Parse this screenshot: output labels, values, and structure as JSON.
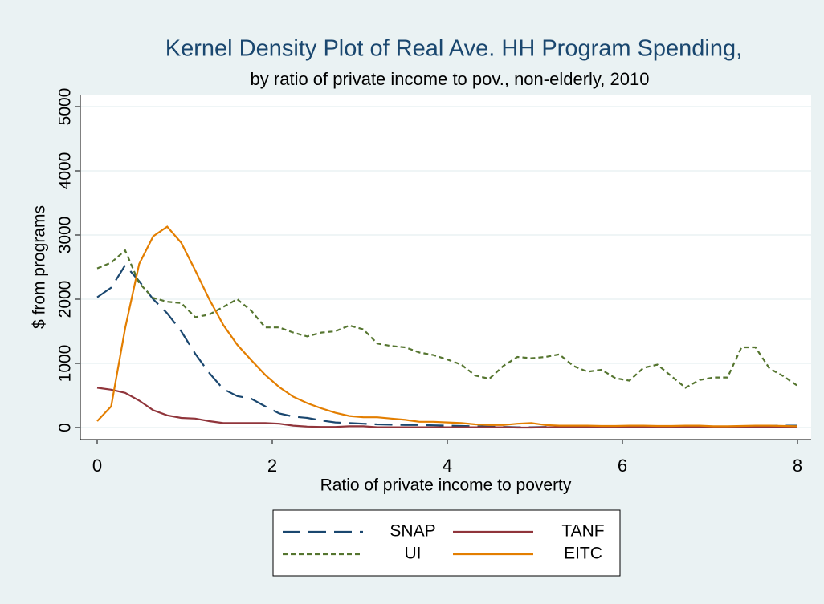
{
  "chart_data": {
    "type": "line",
    "title": "Kernel Density Plot of Real Ave. HH Program Spending,",
    "subtitle": "by ratio of private income to pov., non-elderly, 2010",
    "x_label": "Ratio of private income to poverty",
    "y_label": "$ from programs",
    "x": [
      0,
      0.16,
      0.32,
      0.48,
      0.64,
      0.8,
      0.96,
      1.12,
      1.28,
      1.44,
      1.6,
      1.76,
      1.92,
      2.08,
      2.24,
      2.4,
      2.56,
      2.72,
      2.88,
      3.04,
      3.2,
      3.36,
      3.52,
      3.68,
      3.84,
      4.0,
      4.16,
      4.32,
      4.48,
      4.64,
      4.8,
      4.96,
      5.12,
      5.28,
      5.44,
      5.6,
      5.76,
      5.92,
      6.08,
      6.24,
      6.4,
      6.56,
      6.72,
      6.88,
      7.04,
      7.2,
      7.36,
      7.52,
      7.68,
      7.84,
      8.0
    ],
    "series": [
      {
        "name": "SNAP",
        "color": "#1a476f",
        "dash": "longdash",
        "values": [
          2030,
          2180,
          2530,
          2280,
          2000,
          1780,
          1500,
          1150,
          850,
          600,
          490,
          450,
          330,
          220,
          170,
          150,
          110,
          80,
          70,
          60,
          50,
          45,
          40,
          40,
          35,
          30,
          25,
          20,
          15,
          10,
          5,
          5,
          10,
          15,
          10,
          5,
          5,
          5,
          5,
          5,
          5,
          5,
          10,
          10,
          10,
          10,
          15,
          20,
          25,
          30,
          30
        ]
      },
      {
        "name": "TANF",
        "color": "#90353b",
        "dash": "solid",
        "values": [
          620,
          590,
          540,
          420,
          270,
          190,
          150,
          140,
          100,
          70,
          70,
          70,
          70,
          60,
          30,
          15,
          10,
          10,
          20,
          20,
          5,
          5,
          5,
          5,
          5,
          5,
          5,
          5,
          5,
          5,
          0,
          0,
          5,
          5,
          5,
          5,
          5,
          5,
          5,
          5,
          5,
          5,
          5,
          5,
          5,
          5,
          5,
          5,
          5,
          5,
          5
        ]
      },
      {
        "name": "UI",
        "color": "#55752f",
        "dash": "shortdash",
        "values": [
          2480,
          2570,
          2760,
          2250,
          2020,
          1960,
          1940,
          1720,
          1760,
          1880,
          2000,
          1820,
          1560,
          1560,
          1480,
          1420,
          1480,
          1500,
          1590,
          1530,
          1310,
          1270,
          1250,
          1170,
          1130,
          1060,
          980,
          810,
          760,
          960,
          1100,
          1080,
          1100,
          1140,
          960,
          870,
          900,
          770,
          730,
          930,
          980,
          800,
          620,
          740,
          780,
          780,
          1250,
          1250,
          920,
          800,
          650
        ]
      },
      {
        "name": "EITC",
        "color": "#e37e00",
        "dash": "solid",
        "values": [
          100,
          330,
          1550,
          2550,
          2980,
          3130,
          2880,
          2450,
          2000,
          1600,
          1290,
          1050,
          820,
          630,
          480,
          380,
          300,
          230,
          180,
          160,
          160,
          140,
          120,
          90,
          90,
          80,
          70,
          50,
          40,
          40,
          60,
          70,
          40,
          30,
          30,
          30,
          25,
          25,
          30,
          30,
          25,
          25,
          30,
          30,
          20,
          20,
          25,
          30,
          30,
          25,
          20
        ]
      }
    ],
    "xlim": [
      0,
      8
    ],
    "xticks": [
      0,
      2,
      4,
      6,
      8
    ],
    "ylim": [
      0,
      5000
    ],
    "yticks": [
      0,
      1000,
      2000,
      3000,
      4000,
      5000
    ],
    "grid": true
  }
}
